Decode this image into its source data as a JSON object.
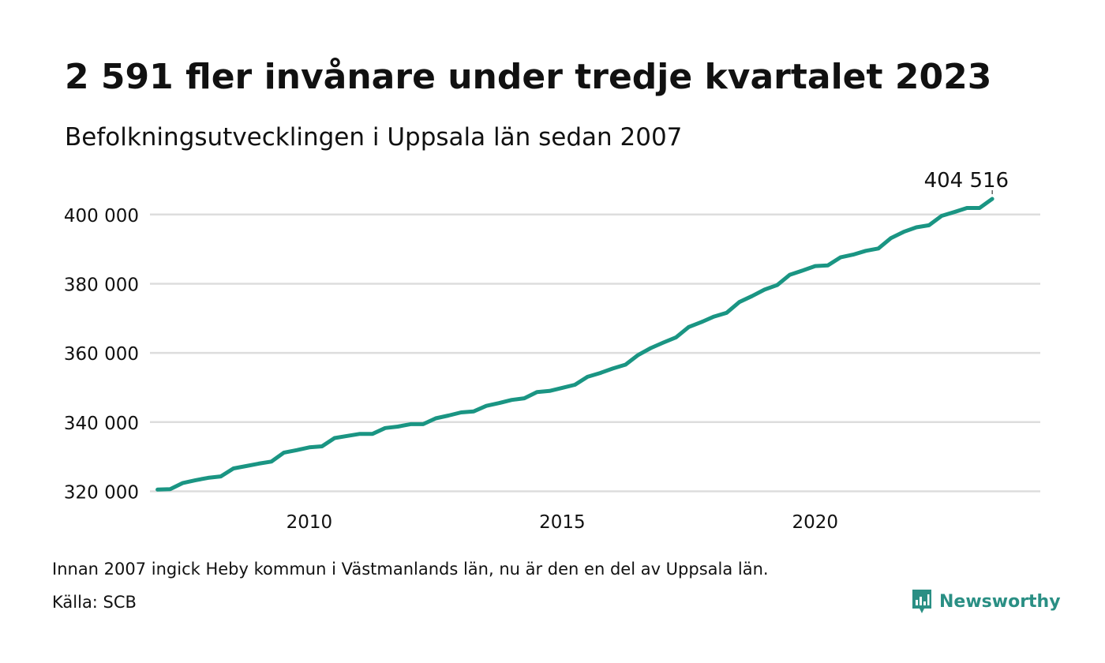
{
  "title": "2 591 fler invånare under tredje kvartalet 2023",
  "subtitle": "Befolkningsutvecklingen i Uppsala län sedan 2007",
  "note": "Innan 2007 ingick Heby kommun i Västmanlands län, nu är den en del av Uppsala län.",
  "source": "Källa: SCB",
  "brand": {
    "name": "Newsworthy",
    "icon": "newsworthy-logo-icon",
    "color": "#2a8f84"
  },
  "colors": {
    "line": "#1a9583",
    "grid": "#dddddd",
    "text": "#111111"
  },
  "chart_data": {
    "type": "line",
    "title": "2 591 fler invånare under tredje kvartalet 2023",
    "subtitle": "Befolkningsutvecklingen i Uppsala län sedan 2007",
    "xlabel": "",
    "ylabel": "",
    "xlim": [
      2006.85,
      2024.45
    ],
    "ylim": [
      316000,
      404516
    ],
    "y_ticks": [
      320000,
      340000,
      360000,
      380000,
      400000
    ],
    "y_tick_labels": [
      "320 000",
      "340 000",
      "360 000",
      "380 000",
      "400 000"
    ],
    "x_ticks": [
      2010,
      2015,
      2020
    ],
    "x_tick_labels": [
      "2010",
      "2015",
      "2020"
    ],
    "grid": "horizontal",
    "end_label": "404 516",
    "series": [
      {
        "x": [
          2007.0,
          2007.25,
          2007.5,
          2007.75,
          2008.0,
          2008.25,
          2008.5,
          2008.75,
          2009.0,
          2009.25,
          2009.5,
          2009.75,
          2010.0,
          2010.25,
          2010.5,
          2010.75,
          2011.0,
          2011.25,
          2011.5,
          2011.75,
          2012.0,
          2012.25,
          2012.5,
          2012.75,
          2013.0,
          2013.25,
          2013.5,
          2013.75,
          2014.0,
          2014.25,
          2014.5,
          2014.75,
          2015.0,
          2015.25,
          2015.5,
          2015.75,
          2016.0,
          2016.25,
          2016.5,
          2016.75,
          2017.0,
          2017.25,
          2017.5,
          2017.75,
          2018.0,
          2018.25,
          2018.5,
          2018.75,
          2019.0,
          2019.25,
          2019.5,
          2019.75,
          2020.0,
          2020.25,
          2020.5,
          2020.75,
          2021.0,
          2021.25,
          2021.5,
          2021.75,
          2022.0,
          2022.25,
          2022.5,
          2022.75,
          2023.0,
          2023.25,
          2023.5
        ],
        "values": [
          320500,
          320600,
          322400,
          323200,
          323900,
          324300,
          326600,
          327300,
          328000,
          328600,
          331200,
          331900,
          332700,
          333000,
          335400,
          336000,
          336600,
          336600,
          338300,
          338700,
          339400,
          339400,
          341100,
          341900,
          342800,
          343100,
          344700,
          345500,
          346400,
          346900,
          348700,
          349000,
          349900,
          350800,
          353100,
          354200,
          355500,
          356600,
          359400,
          361400,
          363000,
          364500,
          367500,
          368900,
          370500,
          371600,
          374700,
          376400,
          378300,
          379600,
          382600,
          383800,
          385100,
          385300,
          387600,
          388400,
          389500,
          390200,
          393200,
          395000,
          396300,
          396900,
          399600,
          400700,
          401900,
          401900,
          404516
        ]
      }
    ]
  }
}
